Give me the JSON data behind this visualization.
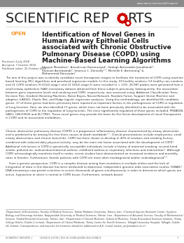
{
  "header_url": "www.nature.com/scientificreports",
  "open_label": "OPEN",
  "open_color": "#f7941d",
  "article_title_lines": [
    "Identification of Novel Genes in",
    "Human Airway Epithelial Cells",
    "associated with Chronic Obstructive",
    "Pulmonary Disease (COPD) using",
    "Machine-Based Learning Algorithms"
  ],
  "received": "Received: 4 July 2018",
  "accepted": "Accepted: 7 October 2018",
  "published": "Published online: 25 October 2018",
  "authors_lines": [
    "Shayan Mostafavi¹, Anoshirvan Kazemnejad¹, Sadegh Azimzadeh Jamalkandi²,",
    "Soroush Amirbashjki³, Seamus C. Donnelly⁴·⁵, Michelle E. Armstrong⁶ &",
    "Mohammad Darouyian¹"
  ],
  "abstract_text": "The aim of this project was to identify candidate novel therapeutic targets to facilitate the treatment of COPD using machine based learning (ML) algorithms and penalized regression models. In this study, 59 healthy smokers, 53 healthy non-smokers and 21 COPD smokers (9 GOLD-stage I and 12 GOLD-stage II) were included (n = 133). 26,987 probes were generated from a small airway epithelium (SAE) microarray dataset obtained from these subjects previously. Subsequently, the association between gene expression levels and smoking and COPD, respectively, was assessed using: Adaboost Classification Trees, Decision Tree, Gradient Boosting Machines, Naive Bayes, Neural Network, Random Forest, Support Vector Machine and adaptive (LASSO), Elastic Net, and Ridge logistic regression analyses. Using this methodology, we identified 66 candidate genes, 17 of these genes had been previously been reported as important factors in the pathogenesis of COPD or regulation of lung function. Here, we also identified 17 genes, which have not been previously identified to be associated with the pathogenesis of COPD or the regulation of lung function. The most significantly regulated of these genes included: PRKAR2B, GAD1, LINC00500 and SLC7R61. These novel genes may provide the basis for the future development of novel therapeutics in COPD and its associated morbidities.",
  "body_text": "Chronic obstructive pulmonary disease (COPD) is a progressive inflammatory disease characterised by airway obstruction and is predicted to be among the first three causes of death worldwide¹·². Clinical presentations include emphysema, small airway obstructions and chronic bronchitis. COPD has been shown to develop in 40% of smokers and smoking history, combined with reduced daily physical activity, may be the main risk factor associated with the development of COPD³. Additional risk factors in COPD in genetically susceptible individuals include a history of maternal smoking, second-hand smoke, polluted air, malnutrition/maternal asthma, childhood asthma or respiratory infections and malnutrition⁴. Although COPD achronologically manifests itself in males, recent studies have demonstrated an increased incidence and mortality rates in females. Furthermore, female patients with COPD are more often misdiagnosed and/or underdiagnosed⁵·⁶.",
  "body_text2": "    From a genetic perspective, COPD is a complex disease arising from mutations in multiple alleles and the lack of integration of data in this disease has been attributed to dispersed, independent genome wide association studies (GWAS)⁷. DNA microarrays now permit scientists to screen thousands of genes simultaneously in order to determine which genes are active, hypoactive or silent in normal or COPD tissue. Furthermore, network-based",
  "affiliations": "¹Department of Biostatistics, Faculty of Medical Sciences, Tarbiat Modares University, Tehran, Iran. ²Chemical Injuries Research Center, Systems Biology and Poisonings Institute, Baqiyatallah University of Medical Sciences, Tehran, Iran. ³Department of Actuarial Science, Faculty of Mathematical Science, Shahid Beheshti University, Tehran, Iran. ⁴Department of Clinical Medicine, School of Medicine, Trinity Biomedical Sciences Institute, Trinity College Dublin, Dublin 2, Ireland. ⁵Department of Clinical Medicine, Trinity Centre for Health Sciences, Tallaght University Hospital, Tallaght, Dublin 24, Ireland. Correspondence and requests for materials should be addressed to A.K. (email: kazem_an@modares.ac.ir)",
  "footer": "SCIENTIFIC REPORTS |          (2018) 8:15778 | DOI:10.1038/s41598-018-33986-9",
  "page_num": "1",
  "bg_color": "#ffffff",
  "text_color": "#231f20",
  "gear_color": "#cc0000",
  "header_bg": "#8a8a8a",
  "divider_color": "#cccccc"
}
